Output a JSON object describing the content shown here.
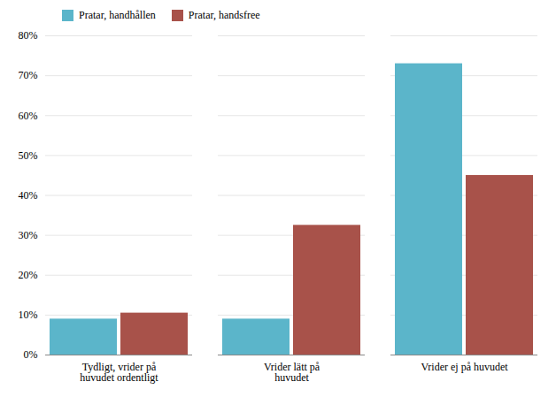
{
  "chart_data": {
    "type": "bar",
    "categories": [
      "Tydligt, vrider på\nhuvudet ordentligt",
      "Vrider lätt på\nhuvudet",
      "Vrider ej på huvudet"
    ],
    "series": [
      {
        "name": "Pratar, handhållen",
        "color": "#5BB5CA",
        "values": [
          0.09,
          0.09,
          0.73
        ]
      },
      {
        "name": "Pratar, handsfree",
        "color": "#A8524A",
        "values": [
          0.105,
          0.325,
          0.45
        ]
      }
    ],
    "ylim": [
      0,
      0.8
    ],
    "yticks": [
      {
        "value": 0.0,
        "label": "0%"
      },
      {
        "value": 0.1,
        "label": "10%"
      },
      {
        "value": 0.2,
        "label": "20%"
      },
      {
        "value": 0.3,
        "label": "30%"
      },
      {
        "value": 0.4,
        "label": "40%"
      },
      {
        "value": 0.5,
        "label": "50%"
      },
      {
        "value": 0.6,
        "label": "60%"
      },
      {
        "value": 0.7,
        "label": "70%"
      },
      {
        "value": 0.8,
        "label": "80%"
      }
    ],
    "grid": true,
    "legend": "upper left"
  }
}
